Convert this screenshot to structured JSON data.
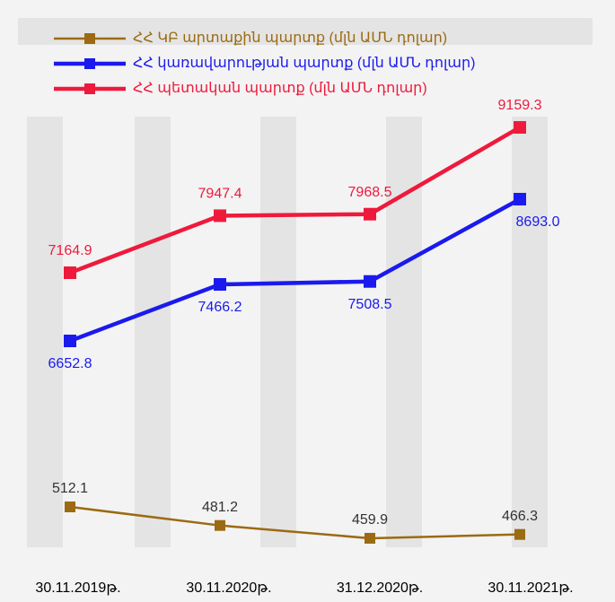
{
  "chart_data": {
    "type": "line",
    "categories": [
      "30.11.2019թ.",
      "30.11.2020թ.",
      "31.12.2020թ.",
      "30.11.2021թ."
    ],
    "series": [
      {
        "name": "ՀՀ ԿԲ արտաքին պարտք (մլն ԱՄՆ դոլար)",
        "color": "#9b6a12",
        "values": [
          512.1,
          481.2,
          459.9,
          466.3
        ],
        "value_labels": [
          "512.1",
          "481.2",
          "459.9",
          "466.3"
        ],
        "ylim": [
          430,
          1206
        ]
      },
      {
        "name": "ՀՀ կառավարության պարտք (մլն ԱՄՆ դոլար)",
        "color": "#1a1aee",
        "values": [
          6652.8,
          7466.2,
          7508.5,
          8693.0
        ],
        "value_labels": [
          "6652.8",
          "7466.2",
          "7508.5",
          "8693.0"
        ],
        "ylim": [
          3554,
          10268
        ]
      },
      {
        "name": "ՀՀ պետական պարտք (մլն ԱՄՆ դոլար)",
        "color": "#ee1a3c",
        "values": [
          7164.9,
          7947.4,
          7968.5,
          9159.3
        ],
        "value_labels": [
          "7164.9",
          "7947.4",
          "7968.5",
          "9159.3"
        ],
        "ylim": [
          3275,
          9676
        ]
      }
    ]
  }
}
